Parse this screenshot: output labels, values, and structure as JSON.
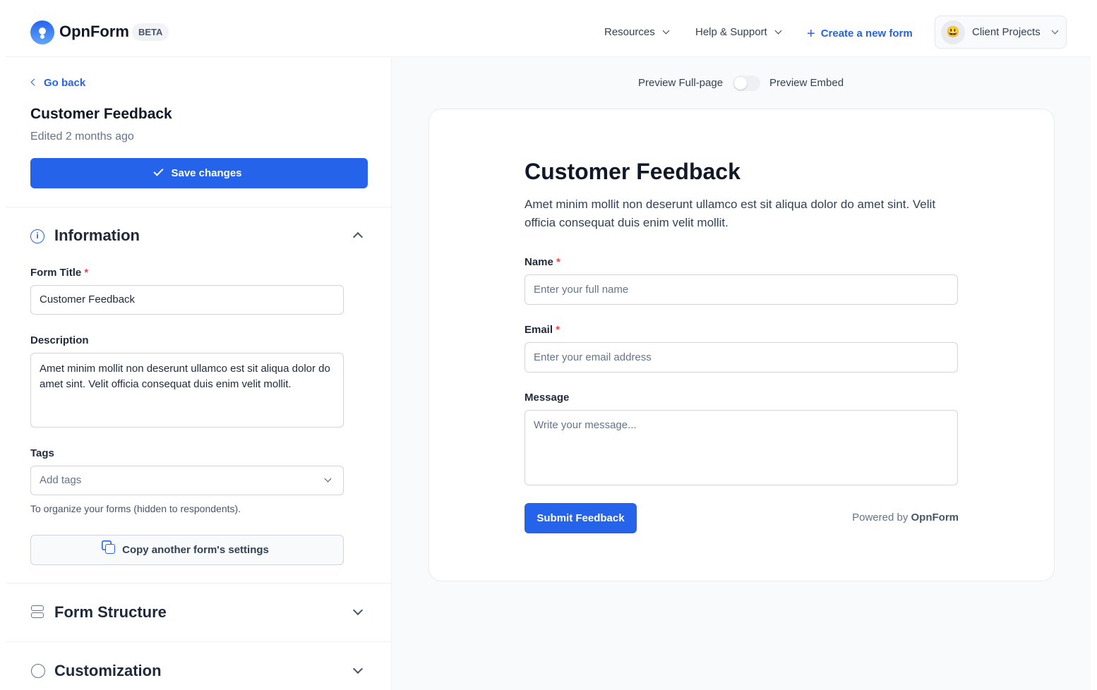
{
  "header": {
    "brand": "OpnForm",
    "badge": "BETA",
    "nav": [
      "Resources",
      "Help & Support"
    ],
    "create": "Create a new form",
    "workspace": {
      "emoji": "😃",
      "name": "Client Projects"
    }
  },
  "sidebar": {
    "back": "Go back",
    "title": "Customer Feedback",
    "edited": "Edited 2 months ago",
    "save": "Save changes",
    "information": {
      "heading": "Information",
      "form_title_label": "Form Title",
      "form_title_value": "Customer Feedback",
      "description_label": "Description",
      "description_value": "Amet minim mollit non deserunt ullamco est sit aliqua dolor do amet sint. Velit officia consequat duis enim velit mollit.",
      "tags_label": "Tags",
      "tags_placeholder": "Add tags",
      "tags_help": "To organize your forms (hidden to respondents).",
      "copy_button": "Copy another form's settings"
    },
    "sections": [
      "Form Structure",
      "Customization"
    ]
  },
  "preview": {
    "toggle_left": "Preview Full-page",
    "toggle_right": "Preview Embed",
    "toggle_on": false,
    "form": {
      "title": "Customer Feedback",
      "description": "Amet minim mollit non deserunt ullamco est sit aliqua dolor do amet sint. Velit officia consequat duis enim velit mollit.",
      "fields": [
        {
          "label": "Name",
          "required": "*",
          "placeholder": "Enter your full name"
        },
        {
          "label": "Email",
          "required": "*",
          "placeholder": "Enter your email address"
        },
        {
          "label": "Message",
          "placeholder": "Write your message..."
        }
      ],
      "submit": "Submit Feedback",
      "powered_by": "Powered by",
      "powered_brand": "OpnForm"
    }
  },
  "colors": {
    "accent": "#2563eb",
    "required": "#ef4444"
  }
}
